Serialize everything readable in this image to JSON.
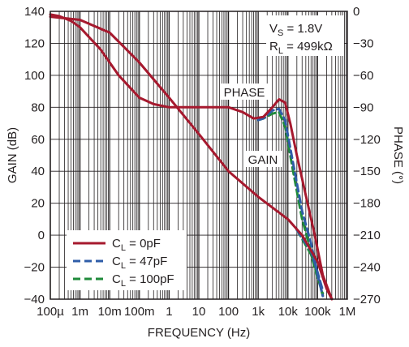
{
  "chart_data": {
    "type": "line",
    "x_scale": "log",
    "xlabel": "FREQUENCY (Hz)",
    "ylabel_left": "GAIN (dB)",
    "ylabel_right": "PHASE (°)",
    "x_ticks": [
      {
        "value": 0.0001,
        "label": "100µ"
      },
      {
        "value": 0.001,
        "label": "1m"
      },
      {
        "value": 0.01,
        "label": "10m"
      },
      {
        "value": 0.1,
        "label": "100m"
      },
      {
        "value": 1,
        "label": "1"
      },
      {
        "value": 10,
        "label": "10"
      },
      {
        "value": 100,
        "label": "100"
      },
      {
        "value": 1000,
        "label": "1k"
      },
      {
        "value": 10000,
        "label": "10k"
      },
      {
        "value": 100000,
        "label": "100k"
      },
      {
        "value": 1000000,
        "label": "1M"
      }
    ],
    "xlim": [
      0.0001,
      1000000
    ],
    "ylim_left": [
      -40,
      140
    ],
    "ylim_right": [
      -270,
      0
    ],
    "y_ticks_left": [
      140,
      120,
      100,
      80,
      60,
      40,
      20,
      0,
      -20,
      -40
    ],
    "y_ticks_right": [
      0,
      -30,
      -60,
      -90,
      -120,
      -150,
      -180,
      -210,
      -240,
      -270
    ],
    "grid": true,
    "conditions": {
      "vs": {
        "main": "V",
        "sub": "S",
        "rest": " = 1.8V"
      },
      "rl": {
        "main": "R",
        "sub": "L",
        "rest": " = 499kΩ"
      }
    },
    "annotations": {
      "phase": "PHASE",
      "gain": "GAIN"
    },
    "legend_position": "bottom-left",
    "series": [
      {
        "key": "c0",
        "legend": {
          "main": "C",
          "sub": "L",
          "rest": " = 0pF"
        },
        "color": "#a6192e",
        "dash": "solid"
      },
      {
        "key": "c47",
        "legend": {
          "main": "C",
          "sub": "L",
          "rest": " = 47pF"
        },
        "color": "#2f5da8",
        "dash": "dashed"
      },
      {
        "key": "c100",
        "legend": {
          "main": "C",
          "sub": "L",
          "rest": " = 100pF"
        },
        "color": "#1f8a3a",
        "dash": "dashed"
      }
    ],
    "gain_curves": {
      "c0": [
        [
          0.0001,
          138
        ],
        [
          0.0002,
          137
        ],
        [
          0.0005,
          134
        ],
        [
          0.001,
          130
        ],
        [
          0.002,
          124
        ],
        [
          0.005,
          116
        ],
        [
          0.01,
          108
        ],
        [
          0.02,
          100
        ],
        [
          0.05,
          92
        ],
        [
          0.1,
          86
        ],
        [
          0.3,
          82
        ],
        [
          1,
          80
        ],
        [
          3,
          80
        ],
        [
          10,
          80
        ],
        [
          30,
          80
        ],
        [
          100,
          80
        ],
        [
          300,
          77
        ],
        [
          700,
          73
        ],
        [
          1500,
          74
        ],
        [
          3000,
          80
        ],
        [
          5000,
          85
        ],
        [
          8000,
          83
        ],
        [
          12000,
          70
        ],
        [
          20000,
          50
        ],
        [
          40000,
          25
        ],
        [
          80000,
          0
        ],
        [
          150000,
          -25
        ],
        [
          300000,
          -40
        ]
      ],
      "c47": [
        [
          1000,
          72
        ],
        [
          1500,
          73
        ],
        [
          3000,
          78
        ],
        [
          5000,
          79
        ],
        [
          8000,
          72
        ],
        [
          15000,
          45
        ],
        [
          30000,
          15
        ],
        [
          60000,
          -5
        ],
        [
          100000,
          -25
        ],
        [
          150000,
          -38
        ]
      ],
      "c100": [
        [
          1000,
          72
        ],
        [
          1500,
          73
        ],
        [
          3000,
          76
        ],
        [
          5000,
          77
        ],
        [
          8000,
          68
        ],
        [
          15000,
          40
        ],
        [
          30000,
          10
        ],
        [
          60000,
          -10
        ],
        [
          100000,
          -25
        ],
        [
          150000,
          -38
        ]
      ]
    },
    "phase_curves": {
      "c0": [
        [
          0.0001,
          -5
        ],
        [
          0.001,
          -8
        ],
        [
          0.01,
          -20
        ],
        [
          0.1,
          -48
        ],
        [
          1,
          -81
        ],
        [
          10,
          -115
        ],
        [
          100,
          -150
        ],
        [
          1000,
          -174
        ],
        [
          10000,
          -195
        ],
        [
          30000,
          -210
        ],
        [
          100000,
          -235
        ],
        [
          200000,
          -260
        ],
        [
          300000,
          -270
        ]
      ],
      "c47": [
        [
          20000,
          -205
        ],
        [
          60000,
          -225
        ],
        [
          100000,
          -245
        ],
        [
          150000,
          -262
        ]
      ],
      "c100": [
        [
          20000,
          -205
        ],
        [
          60000,
          -228
        ],
        [
          100000,
          -250
        ],
        [
          150000,
          -265
        ]
      ]
    }
  }
}
